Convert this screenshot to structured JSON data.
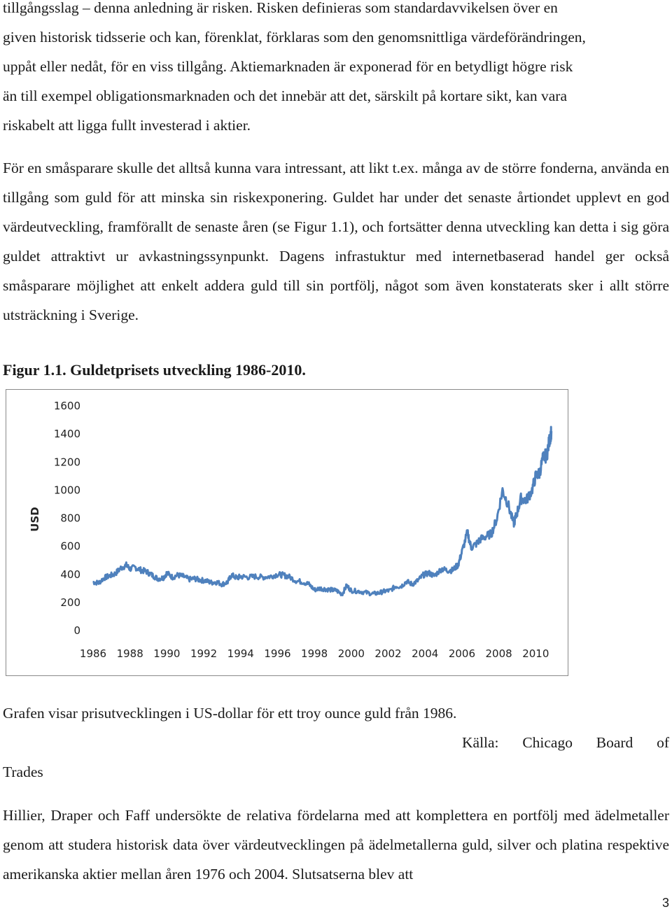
{
  "paragraphs": {
    "intro_lines": [
      "tillgångsslag – denna anledning är risken. Risken definieras som standardavvikelsen över en",
      "given historisk tidsserie och kan, förenklat, förklaras som den genomsnittliga värdeförändringen,",
      "uppåt eller nedåt, för en viss tillgång. Aktiemarknaden är exponerad för en betydligt högre risk",
      "än till exempel obligationsmarknaden och det innebär att det, särskilt på kortare sikt, kan vara",
      "riskabelt att ligga fullt investerad i aktier."
    ],
    "second": "För en småsparare skulle det alltså kunna vara intressant, att likt t.ex. många av de större fonderna, använda en tillgång som guld för att minska sin riskexponering. Guldet har under det senaste årtiondet upplevt en god värdeutveckling, framförallt de senaste åren (se Figur 1.1), och fortsätter denna utveckling kan detta i sig göra guldet attraktivt ur avkastningssynpunkt. Dagens infrastuktur med internetbaserad handel ger också småsparare möjlighet att enkelt addera guld till sin portfölj, något som även konstaterats sker i allt större utsträckning i Sverige.",
    "last": "Hillier, Draper och Faff undersökte de relativa fördelarna med att komplettera en portfölj med ädelmetaller genom att studera historisk data över värdeutvecklingen på ädelmetallerna guld, silver och platina respektive amerikanska aktier mellan åren 1976 och 2004. Slutsatserna blev att"
  },
  "figure": {
    "title": "Figur 1.1. Guldetprisets utveckling 1986-2010.",
    "caption": "Grafen visar prisutvecklingen i US-dollar för ett troy ounce guld från 1986.",
    "source_line1": "Källa: Chicago Board of",
    "source_line2": "Trades"
  },
  "page_number": "3",
  "chart_data": {
    "type": "line",
    "title": "",
    "xlabel": "",
    "ylabel": "USD",
    "xlim": [
      1986,
      2010.9
    ],
    "ylim": [
      0,
      1600
    ],
    "x_ticks": [
      "1986",
      "1988",
      "1990",
      "1992",
      "1994",
      "1996",
      "1998",
      "2000",
      "2002",
      "2004",
      "2006",
      "2008",
      "2010"
    ],
    "y_ticks": [
      "0",
      "200",
      "400",
      "600",
      "800",
      "1000",
      "1200",
      "1400",
      "1600"
    ],
    "grid": false,
    "legend": "none",
    "series": [
      {
        "color": "#4f81bd",
        "points": [
          [
            1986.0,
            345
          ],
          [
            1986.3,
            340
          ],
          [
            1986.6,
            375
          ],
          [
            1986.9,
            390
          ],
          [
            1987.2,
            405
          ],
          [
            1987.5,
            445
          ],
          [
            1987.8,
            465
          ],
          [
            1988.0,
            440
          ],
          [
            1988.3,
            450
          ],
          [
            1988.6,
            430
          ],
          [
            1988.9,
            420
          ],
          [
            1989.2,
            395
          ],
          [
            1989.5,
            370
          ],
          [
            1989.8,
            375
          ],
          [
            1990.0,
            410
          ],
          [
            1990.3,
            380
          ],
          [
            1990.6,
            395
          ],
          [
            1990.9,
            385
          ],
          [
            1991.2,
            365
          ],
          [
            1991.5,
            370
          ],
          [
            1991.8,
            360
          ],
          [
            1992.1,
            355
          ],
          [
            1992.4,
            342
          ],
          [
            1992.7,
            345
          ],
          [
            1993.0,
            330
          ],
          [
            1993.3,
            345
          ],
          [
            1993.5,
            395
          ],
          [
            1993.8,
            375
          ],
          [
            1994.0,
            385
          ],
          [
            1994.4,
            380
          ],
          [
            1994.8,
            385
          ],
          [
            1995.2,
            380
          ],
          [
            1995.6,
            385
          ],
          [
            1996.0,
            400
          ],
          [
            1996.3,
            395
          ],
          [
            1996.6,
            385
          ],
          [
            1997.0,
            355
          ],
          [
            1997.4,
            345
          ],
          [
            1997.7,
            330
          ],
          [
            1998.0,
            290
          ],
          [
            1998.3,
            300
          ],
          [
            1998.6,
            295
          ],
          [
            1998.9,
            290
          ],
          [
            1999.2,
            285
          ],
          [
            1999.5,
            258
          ],
          [
            1999.75,
            320
          ],
          [
            2000.0,
            285
          ],
          [
            2000.4,
            280
          ],
          [
            2000.8,
            270
          ],
          [
            2001.2,
            262
          ],
          [
            2001.5,
            268
          ],
          [
            2001.8,
            280
          ],
          [
            2002.1,
            285
          ],
          [
            2002.4,
            315
          ],
          [
            2002.7,
            315
          ],
          [
            2003.0,
            350
          ],
          [
            2003.3,
            330
          ],
          [
            2003.6,
            355
          ],
          [
            2003.9,
            395
          ],
          [
            2004.2,
            410
          ],
          [
            2004.5,
            390
          ],
          [
            2004.9,
            440
          ],
          [
            2005.2,
            428
          ],
          [
            2005.5,
            430
          ],
          [
            2005.8,
            470
          ],
          [
            2006.0,
            560
          ],
          [
            2006.3,
            700
          ],
          [
            2006.5,
            590
          ],
          [
            2006.8,
            620
          ],
          [
            2007.0,
            650
          ],
          [
            2007.3,
            670
          ],
          [
            2007.6,
            690
          ],
          [
            2007.9,
            800
          ],
          [
            2008.2,
            1000
          ],
          [
            2008.5,
            900
          ],
          [
            2008.8,
            760
          ],
          [
            2008.95,
            820
          ],
          [
            2009.2,
            940
          ],
          [
            2009.5,
            930
          ],
          [
            2009.8,
            1000
          ],
          [
            2010.0,
            1100
          ],
          [
            2010.2,
            1120
          ],
          [
            2010.4,
            1230
          ],
          [
            2010.6,
            1250
          ],
          [
            2010.75,
            1360
          ],
          [
            2010.85,
            1420
          ]
        ]
      }
    ]
  }
}
